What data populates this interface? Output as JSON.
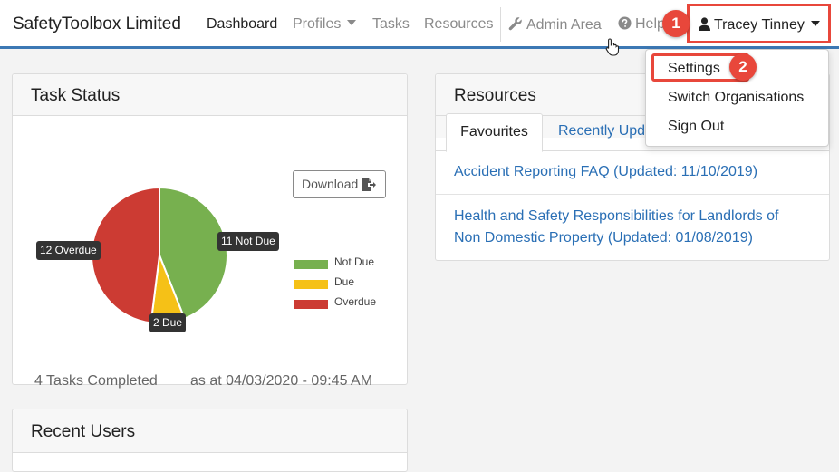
{
  "navbar": {
    "brand": "SafetyToolbox Limited",
    "items": [
      {
        "label": "Dashboard"
      },
      {
        "label": "Profiles"
      },
      {
        "label": "Tasks"
      },
      {
        "label": "Resources"
      },
      {
        "label": "Admin Area"
      },
      {
        "label": "Help"
      }
    ],
    "user_name": "Tracey Tinney"
  },
  "dropdown": {
    "items": [
      {
        "label": "Settings"
      },
      {
        "label": "Switch Organisations"
      },
      {
        "label": "Sign Out"
      }
    ]
  },
  "callouts": [
    "1",
    "2"
  ],
  "task_status": {
    "title": "Task Status",
    "download_label": "Download",
    "completed_text": "4 Tasks Completed",
    "as_at_text": "as at 04/03/2020 - 09:45 AM"
  },
  "chart_data": {
    "type": "pie",
    "categories": [
      "Not Due",
      "Due",
      "Overdue"
    ],
    "values": [
      11,
      2,
      12
    ],
    "data_labels": [
      "11 Not Due",
      "2 Due",
      "12 Overdue"
    ],
    "colors": [
      "#77b04f",
      "#f5c117",
      "#cc3b33"
    ],
    "legend_position": "right"
  },
  "resources": {
    "title": "Resources",
    "tabs": [
      {
        "label": "Favourites"
      },
      {
        "label": "Recently Upd"
      }
    ],
    "items": [
      {
        "text": "Accident Reporting FAQ (Updated: 11/10/2019)"
      },
      {
        "text": "Health and Safety Responsibilities for Landlords of Non Domestic Property (Updated: 01/08/2019)"
      }
    ]
  },
  "recent_users": {
    "title": "Recent Users"
  }
}
